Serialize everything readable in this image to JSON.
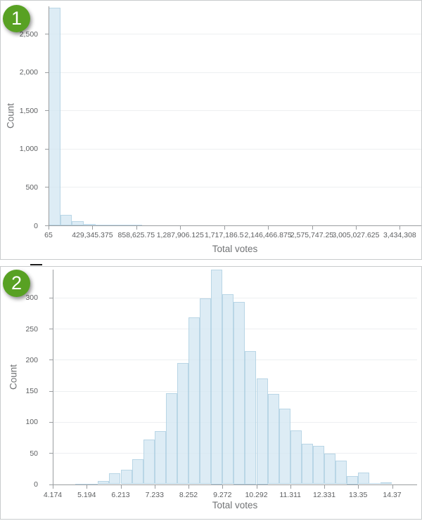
{
  "chart_data": [
    {
      "type": "bar",
      "badge": "1",
      "xlabel": "Total votes",
      "ylabel": "Count",
      "x_tick_labels": [
        "65",
        "429,345.375",
        "858,625.75",
        "1,287,906.125",
        "1,717,186.5",
        "2,146,466.875",
        "2,575,747.25",
        "3,005,027.625",
        "3,434,308"
      ],
      "x_tick_values": [
        65,
        429345.375,
        858625.75,
        1287906.125,
        1717186.5,
        2146466.875,
        2575747.25,
        3005027.625,
        3434308
      ],
      "y_tick_labels": [
        "0",
        "500",
        "1,000",
        "1,500",
        "2,000",
        "2,500"
      ],
      "y_tick_values": [
        0,
        500,
        1000,
        1500,
        2000,
        2500
      ],
      "x_domain": [
        65,
        3645000
      ],
      "ylim": [
        0,
        2857
      ],
      "bin_width": 114704,
      "grid": true,
      "legend": "none",
      "bars": [
        {
          "x": 65,
          "count": 2835
        },
        {
          "x": 114769,
          "count": 137
        },
        {
          "x": 229473,
          "count": 55
        },
        {
          "x": 344177,
          "count": 18
        },
        {
          "x": 458881,
          "count": 12
        },
        {
          "x": 573585,
          "count": 6
        },
        {
          "x": 688289,
          "count": 5
        },
        {
          "x": 802993,
          "count": 3
        }
      ],
      "colors": {
        "bar_fill": "#d3e6f2",
        "bar_border": "#96bfd8",
        "badge": "#58a123"
      }
    },
    {
      "type": "bar",
      "badge": "2",
      "xlabel": "Total votes",
      "ylabel": "Count",
      "x_tick_labels": [
        "4.174",
        "5.194",
        "6.213",
        "7.233",
        "8.252",
        "9.272",
        "10.292",
        "11.311",
        "12.331",
        "13.35",
        "14.37"
      ],
      "x_tick_values": [
        4.174,
        5.194,
        6.213,
        7.233,
        8.252,
        9.272,
        10.292,
        11.311,
        12.331,
        13.35,
        14.37
      ],
      "y_tick_labels": [
        "0",
        "50",
        "100",
        "150",
        "200",
        "250",
        "300"
      ],
      "y_tick_values": [
        0,
        50,
        100,
        150,
        200,
        250,
        300
      ],
      "x_domain": [
        4.174,
        15.12
      ],
      "ylim": [
        0,
        345
      ],
      "bin_width": 0.34,
      "grid": true,
      "legend": "none",
      "bars": [
        {
          "x": 4.854,
          "count": 1
        },
        {
          "x": 5.194,
          "count": 1
        },
        {
          "x": 5.534,
          "count": 5
        },
        {
          "x": 5.873,
          "count": 17
        },
        {
          "x": 6.213,
          "count": 23
        },
        {
          "x": 6.553,
          "count": 40
        },
        {
          "x": 6.893,
          "count": 72
        },
        {
          "x": 7.233,
          "count": 85
        },
        {
          "x": 7.573,
          "count": 146
        },
        {
          "x": 7.913,
          "count": 195
        },
        {
          "x": 8.252,
          "count": 268
        },
        {
          "x": 8.592,
          "count": 299
        },
        {
          "x": 8.932,
          "count": 345
        },
        {
          "x": 9.272,
          "count": 305
        },
        {
          "x": 9.612,
          "count": 293
        },
        {
          "x": 9.952,
          "count": 214
        },
        {
          "x": 10.292,
          "count": 170
        },
        {
          "x": 10.632,
          "count": 145
        },
        {
          "x": 10.971,
          "count": 121
        },
        {
          "x": 11.311,
          "count": 86
        },
        {
          "x": 11.651,
          "count": 65
        },
        {
          "x": 11.991,
          "count": 62
        },
        {
          "x": 12.331,
          "count": 49
        },
        {
          "x": 12.671,
          "count": 38
        },
        {
          "x": 13.011,
          "count": 13
        },
        {
          "x": 13.35,
          "count": 19
        },
        {
          "x": 13.69,
          "count": 2
        },
        {
          "x": 14.03,
          "count": 3
        }
      ],
      "colors": {
        "bar_fill": "#d3e6f2",
        "bar_border": "#96bfd8",
        "badge": "#58a123"
      }
    }
  ]
}
